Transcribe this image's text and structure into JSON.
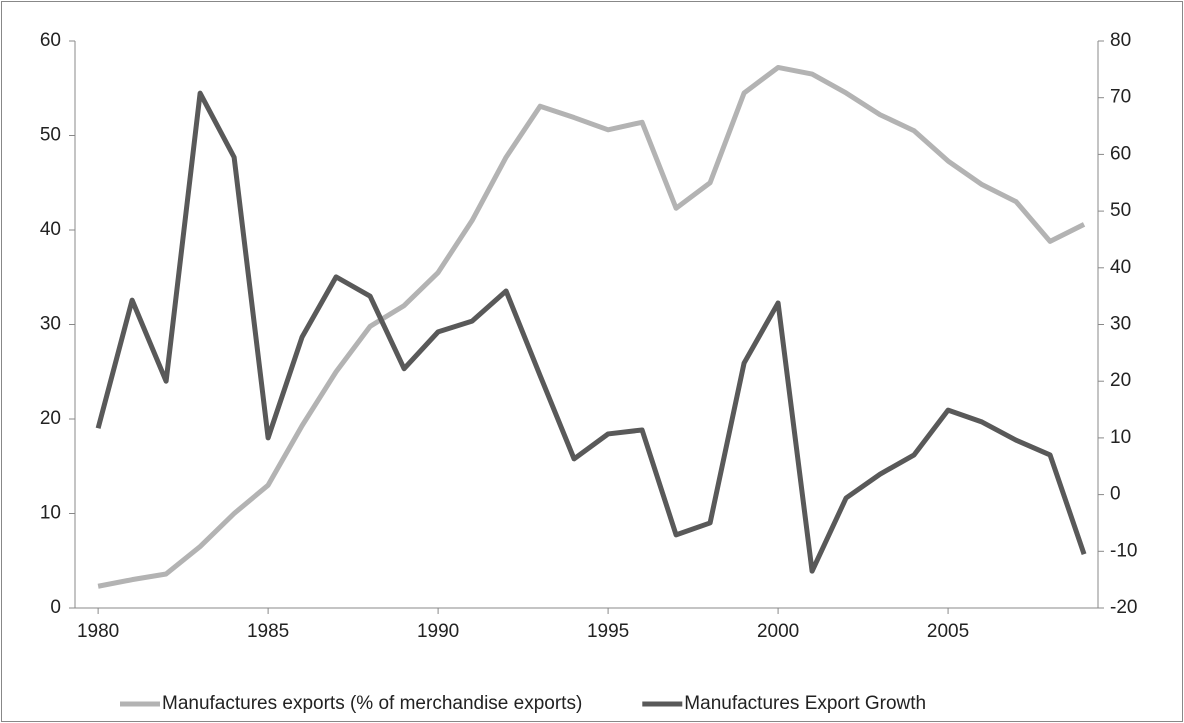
{
  "chart_data": {
    "type": "line",
    "x": [
      1980,
      1981,
      1982,
      1983,
      1984,
      1985,
      1986,
      1987,
      1988,
      1989,
      1990,
      1991,
      1992,
      1993,
      1994,
      1995,
      1996,
      1997,
      1998,
      1999,
      2000,
      2001,
      2002,
      2003,
      2004,
      2005,
      2006,
      2007,
      2008,
      2009
    ],
    "xlim": [
      1979.32,
      2009.41
    ],
    "xticks": [
      1980,
      1985,
      1990,
      1995,
      2000,
      2005
    ],
    "ylim": [
      0,
      60
    ],
    "yticks": [
      0,
      10,
      20,
      30,
      40,
      50,
      60
    ],
    "y2lim": [
      -20,
      80
    ],
    "y2ticks": [
      -20,
      -10,
      0,
      10,
      20,
      30,
      40,
      50,
      60,
      70,
      80
    ],
    "legend": "bottom",
    "series": [
      {
        "name": "Manufactures exports (% of merchandise exports)",
        "color": "#b3b3b3",
        "values": [
          2.3,
          3.0,
          3.6,
          6.5,
          10,
          13,
          19.3,
          25,
          29.8,
          32,
          35.5,
          41,
          47.7,
          53.1,
          51.9,
          50.6,
          51.4,
          42.3,
          45,
          54.5,
          57.2,
          56.5,
          54.5,
          52.2,
          50.5,
          47.3,
          44.8,
          43,
          38.8,
          40.6
        ]
      },
      {
        "name": "Manufactures Export Growth",
        "color": "#595959",
        "axis": "y2",
        "values": [
          11.7,
          34.3,
          20,
          70.8,
          59.5,
          10,
          27.8,
          38.4,
          35,
          22.2,
          28.7,
          30.6,
          35.9,
          21,
          6.3,
          10.7,
          11.4,
          -7.1,
          -5,
          23.2,
          33.8,
          -13.5,
          -0.6,
          3.6,
          7,
          14.9,
          12.8,
          9.6,
          7,
          -10.5
        ]
      }
    ]
  }
}
